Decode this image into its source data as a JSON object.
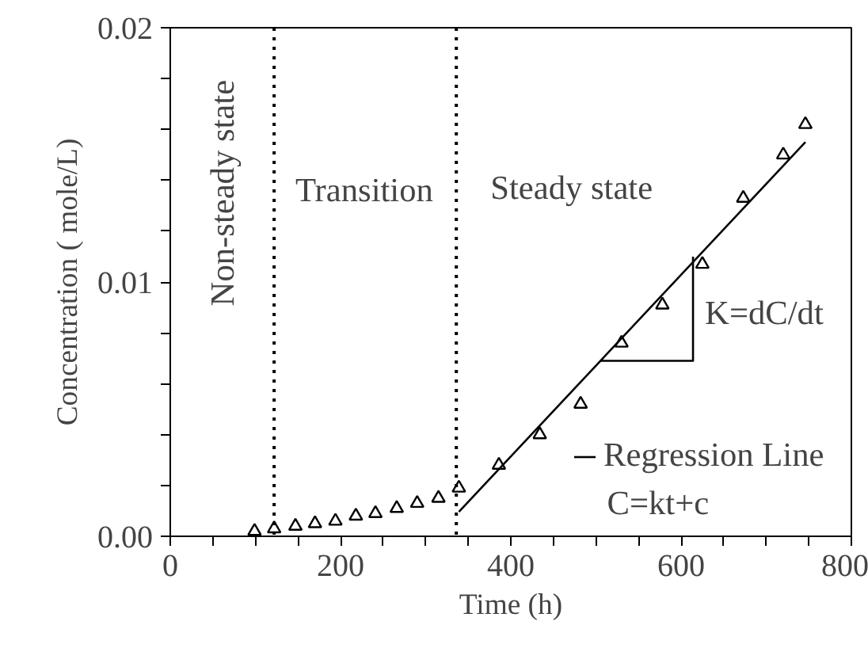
{
  "chart_data": {
    "type": "scatter",
    "xlabel": "Time (h)",
    "ylabel": "Concentration ( mole/L)",
    "xlim": [
      0,
      800
    ],
    "ylim": [
      0,
      0.02
    ],
    "xticks": [
      0,
      {
        "value": 50,
        "label": null
      },
      {
        "value": 100,
        "label": null
      },
      {
        "value": 150,
        "label": null
      },
      200,
      {
        "value": 250,
        "label": null
      },
      {
        "value": 300,
        "label": null
      },
      {
        "value": 350,
        "label": null
      },
      400,
      {
        "value": 450,
        "label": null
      },
      {
        "value": 500,
        "label": null
      },
      {
        "value": 550,
        "label": null
      },
      600,
      {
        "value": 650,
        "label": null
      },
      {
        "value": 700,
        "label": null
      },
      {
        "value": 750,
        "label": null
      },
      800
    ],
    "yticks": [
      {
        "value": 0,
        "label": "0.00"
      },
      {
        "value": 0.002,
        "label": null
      },
      {
        "value": 0.004,
        "label": null
      },
      {
        "value": 0.006,
        "label": null
      },
      {
        "value": 0.008,
        "label": null
      },
      0.01,
      {
        "value": 0.012,
        "label": null
      },
      {
        "value": 0.014,
        "label": null
      },
      {
        "value": 0.016,
        "label": null
      },
      {
        "value": 0.018,
        "label": null
      },
      0.02
    ],
    "grid": false,
    "legend": "bottom right",
    "marker": "triangle",
    "series": [
      {
        "color": "#000000",
        "x": [
          99,
          122,
          147,
          170,
          194,
          218,
          241,
          266,
          290,
          315,
          339,
          386,
          434,
          482,
          530,
          578,
          625,
          673,
          720,
          746
        ],
        "values": [
          0.0002,
          0.0003,
          0.0004,
          0.0005,
          0.0006,
          0.0008,
          0.0009,
          0.0011,
          0.0013,
          0.0015,
          0.0019,
          0.0028,
          0.004,
          0.0052,
          0.0076,
          0.0091,
          0.0107,
          0.0133,
          0.015,
          0.0162
        ]
      },
      {
        "type": "line",
        "name": "Regression Line",
        "color": "#000000",
        "line_style": "solid",
        "marker": "none",
        "x": [
          339,
          746
        ],
        "values": [
          0.00096,
          0.0155
        ]
      },
      {
        "type": "line",
        "color": "#000000",
        "line_style": "solid",
        "marker": "none",
        "x": [
          505,
          614,
          614
        ],
        "values": [
          0.0069,
          0.0069,
          0.011
        ]
      }
    ],
    "ref_lines": [
      {
        "axis": "x",
        "value": 122,
        "line_style": "dotted",
        "color": "#000000"
      },
      {
        "axis": "x",
        "value": 336,
        "line_style": "dotted",
        "color": "#000000"
      }
    ],
    "annotations": [
      "Non-steady state",
      "Transition",
      "Steady state",
      "K=dC/dt",
      "C=kt+c"
    ]
  }
}
